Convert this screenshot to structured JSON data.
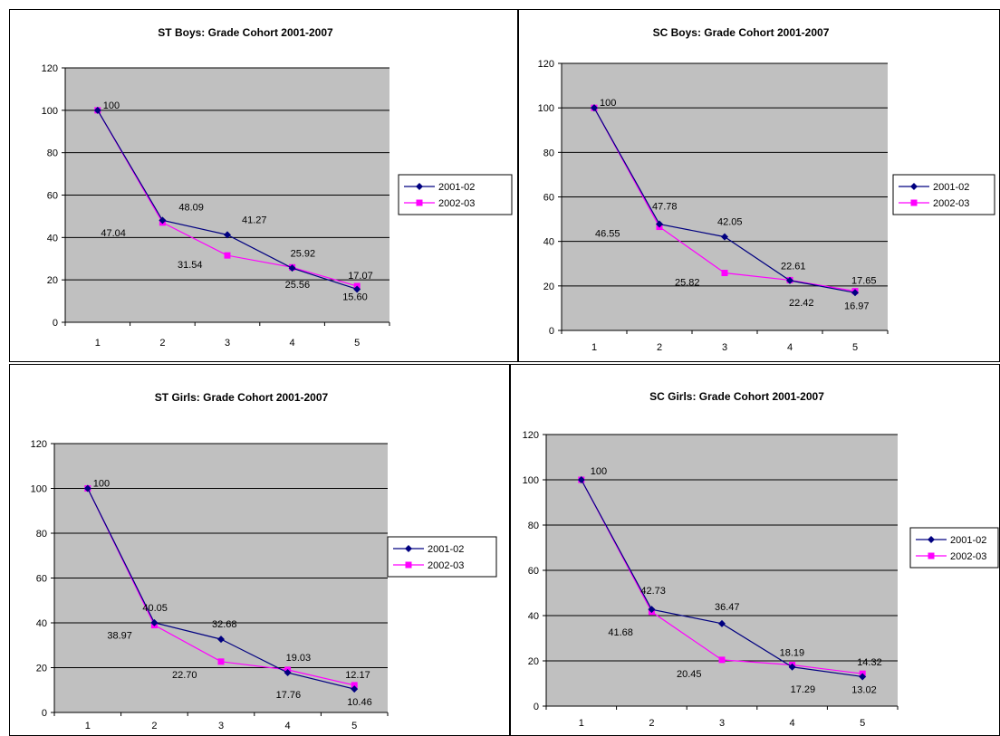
{
  "chart_data": [
    {
      "type": "line",
      "title": "ST Boys: Grade Cohort 2001-2007",
      "categories": [
        "1",
        "2",
        "3",
        "4",
        "5"
      ],
      "ylim": [
        0,
        120
      ],
      "yticks": [
        "0",
        "20",
        "40",
        "60",
        "80",
        "100",
        "120"
      ],
      "grid": true,
      "legend_placement": "right",
      "series": [
        {
          "name": "2001-02",
          "color": "#000080",
          "marker": "diamond",
          "values": [
            100,
            48.09,
            41.27,
            25.56,
            15.6
          ],
          "labels": [
            "100",
            "48.09",
            "41.27",
            "25.56",
            "15.60"
          ]
        },
        {
          "name": "2002-03",
          "color": "#ff00ff",
          "marker": "square",
          "values": [
            100,
            47.04,
            31.54,
            25.92,
            17.07
          ],
          "labels": [
            "",
            "47.04",
            "31.54",
            "25.92",
            "17.07"
          ]
        }
      ]
    },
    {
      "type": "line",
      "title": "SC Boys: Grade Cohort 2001-2007",
      "categories": [
        "1",
        "2",
        "3",
        "4",
        "5"
      ],
      "ylim": [
        0,
        120
      ],
      "yticks": [
        "0",
        "20",
        "40",
        "60",
        "80",
        "100",
        "120"
      ],
      "grid": true,
      "legend_placement": "right",
      "series": [
        {
          "name": "2001-02",
          "color": "#000080",
          "marker": "diamond",
          "values": [
            100,
            47.78,
            42.05,
            22.42,
            16.97
          ],
          "labels": [
            "100",
            "47.78",
            "42.05",
            "22.42",
            "16.97"
          ]
        },
        {
          "name": "2002-03",
          "color": "#ff00ff",
          "marker": "square",
          "values": [
            100,
            46.55,
            25.82,
            22.61,
            17.65
          ],
          "labels": [
            "",
            "46.55",
            "25.82",
            "22.61",
            "17.65"
          ]
        }
      ]
    },
    {
      "type": "line",
      "title": "ST Girls: Grade Cohort 2001-2007",
      "categories": [
        "1",
        "2",
        "3",
        "4",
        "5"
      ],
      "ylim": [
        0,
        120
      ],
      "yticks": [
        "0",
        "20",
        "40",
        "60",
        "80",
        "100",
        "120"
      ],
      "grid": true,
      "legend_placement": "right",
      "series": [
        {
          "name": "2001-02",
          "color": "#000080",
          "marker": "diamond",
          "values": [
            100,
            40.05,
            32.68,
            17.76,
            10.46
          ],
          "labels": [
            "100",
            "40.05",
            "32.68",
            "17.76",
            "10.46"
          ]
        },
        {
          "name": "2002-03",
          "color": "#ff00ff",
          "marker": "square",
          "values": [
            100,
            38.97,
            22.7,
            19.03,
            12.17
          ],
          "labels": [
            "",
            "38.97",
            "22.70",
            "19.03",
            "12.17"
          ]
        }
      ]
    },
    {
      "type": "line",
      "title": "SC Girls: Grade Cohort 2001-2007",
      "categories": [
        "1",
        "2",
        "3",
        "4",
        "5"
      ],
      "ylim": [
        0,
        120
      ],
      "yticks": [
        "0",
        "20",
        "40",
        "60",
        "80",
        "100",
        "120"
      ],
      "grid": true,
      "legend_placement": "right",
      "series": [
        {
          "name": "2001-02",
          "color": "#000080",
          "marker": "diamond",
          "values": [
            100,
            42.73,
            36.47,
            17.29,
            13.02
          ],
          "labels": [
            "100",
            "42.73",
            "36.47",
            "17.29",
            "13.02"
          ]
        },
        {
          "name": "2002-03",
          "color": "#ff00ff",
          "marker": "square",
          "values": [
            100,
            41.68,
            20.45,
            18.19,
            14.32
          ],
          "labels": [
            "",
            "41.68",
            "20.45",
            "18.19",
            "14.32"
          ]
        }
      ]
    }
  ]
}
